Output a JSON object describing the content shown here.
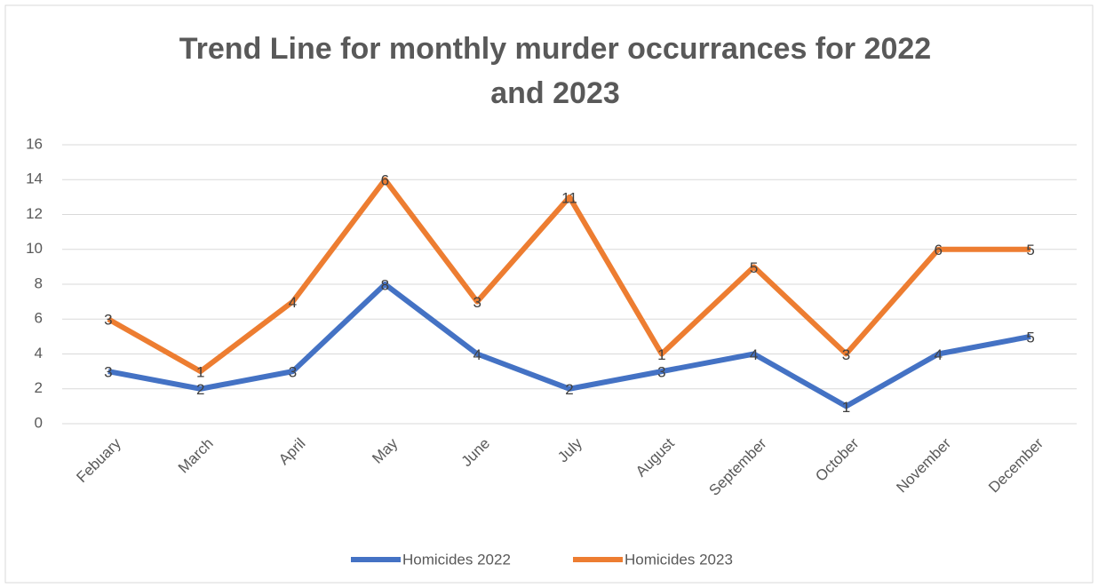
{
  "chart_data": {
    "type": "line",
    "stacked": true,
    "title": "Trend Line for monthly murder occurrances  for 2022 and 2023",
    "categories": [
      "Febuary",
      "March",
      "April",
      "May",
      "June",
      "July",
      "August",
      "September",
      "October",
      "November",
      "December"
    ],
    "series": [
      {
        "name": "Homicides 2022",
        "color": "#4472c4",
        "values": [
          3,
          2,
          3,
          8,
          4,
          2,
          3,
          4,
          1,
          4,
          5
        ]
      },
      {
        "name": "Homicides 2023",
        "color": "#ed7d31",
        "values": [
          3,
          1,
          4,
          6,
          3,
          11,
          1,
          5,
          3,
          6,
          5
        ]
      }
    ],
    "ylim": [
      0,
      16
    ],
    "yticks": [
      0,
      2,
      4,
      6,
      8,
      10,
      12,
      14,
      16
    ],
    "grid": true,
    "legend": "bottom",
    "data_labels": true
  }
}
